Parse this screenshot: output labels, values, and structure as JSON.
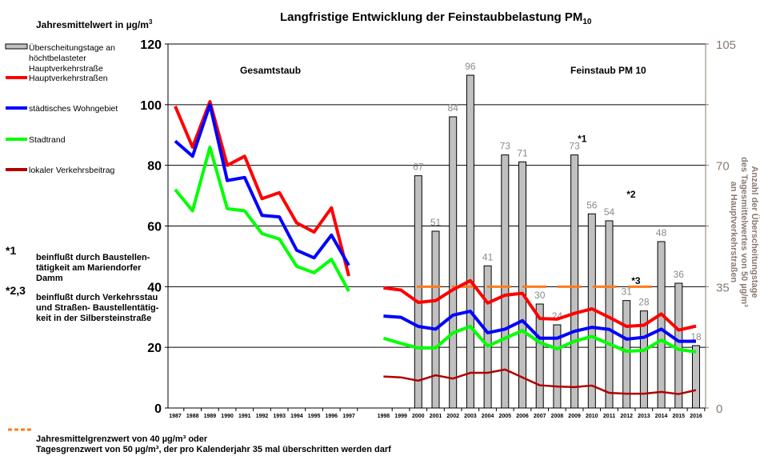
{
  "chart_data": {
    "type": "bar+line",
    "title": "Langfristige Entwicklung der Feinstaubbelastung PM",
    "title_sub": "10",
    "ylabel": "Jahresmittelwert in µg/m",
    "ylabel_sup": "3",
    "ylim": [
      0,
      120
    ],
    "yticks": [
      0,
      20,
      40,
      60,
      80,
      100,
      120
    ],
    "y2label": [
      "Anzahl der Überscheitungstage",
      "des Tagesmittelwertes von 50 µg/m³",
      "an Hauptverkehrstraßen"
    ],
    "y2lim": [
      0,
      105
    ],
    "y2ticks": [
      0,
      35,
      70,
      105
    ],
    "grid": true,
    "categories": [
      "1987",
      "1988",
      "1989",
      "1990",
      "1991",
      "1992",
      "1993",
      "1994",
      "1995",
      "1996",
      "1997",
      "",
      "1998",
      "1999",
      "2000",
      "2001",
      "2002",
      "2003",
      "2004",
      "2005",
      "2006",
      "2007",
      "2008",
      "2009",
      "2010",
      "2011",
      "2012",
      "2013",
      "2014",
      "2015",
      "2016"
    ],
    "section_labels": [
      "Gesamtstaub",
      "Feinstaub PM 10"
    ],
    "bars": {
      "name": "Überscheitungstage an höchtbelasteter Hauptverkehrstraße",
      "axis": "right",
      "color": "#c0c0c0",
      "values": [
        null,
        null,
        null,
        null,
        null,
        null,
        null,
        null,
        null,
        null,
        null,
        null,
        null,
        null,
        67,
        51,
        84,
        96,
        41,
        73,
        71,
        30,
        24,
        73,
        56,
        54,
        31,
        28,
        48,
        36,
        18
      ]
    },
    "series": [
      {
        "name": "Hauptverkehrstraßen",
        "color": "#ff0000",
        "values": [
          99.5,
          86,
          101,
          80,
          83,
          69,
          71,
          61,
          58,
          66,
          43.5,
          null,
          39.6,
          38.9,
          34.8,
          35.4,
          39,
          42,
          34.6,
          37.2,
          37.8,
          29.5,
          29.3,
          31.2,
          32.7,
          29.9,
          26.9,
          27.3,
          31,
          25.7,
          27
        ]
      },
      {
        "name": "städtisches Wohngebiet",
        "color": "#0000ff",
        "values": [
          88,
          83,
          100,
          75,
          76,
          63.5,
          63,
          52,
          49.5,
          57,
          47,
          null,
          30.3,
          29.9,
          26.9,
          26,
          30.6,
          31.9,
          24.8,
          26,
          28.8,
          23,
          23,
          25.3,
          26.6,
          25.9,
          22.7,
          23.3,
          26,
          22,
          22
        ]
      },
      {
        "name": "Stadtrand",
        "color": "#00ff00",
        "values": [
          72,
          65,
          86,
          65.7,
          65,
          57.5,
          55.7,
          46.7,
          44.6,
          49,
          38.5,
          null,
          23,
          21.3,
          19.8,
          19.8,
          24.8,
          26.9,
          20.4,
          23,
          25.5,
          21.6,
          19.5,
          22,
          23.6,
          21.1,
          18.7,
          19,
          22.4,
          19.3,
          18.5
        ]
      },
      {
        "name": "lokaler Verkehrsbeitrag",
        "color": "#b00000",
        "values": [
          null,
          null,
          null,
          null,
          null,
          null,
          null,
          null,
          null,
          null,
          null,
          null,
          10.4,
          10.1,
          9,
          10.8,
          9.7,
          11.6,
          11.6,
          12.7,
          10.1,
          7.5,
          7.1,
          6.9,
          7.4,
          5,
          4.7,
          4.7,
          5.3,
          4.6,
          5.9
        ]
      }
    ],
    "limit_line": {
      "value": 40,
      "color": "#ff7a1a",
      "from": "2000",
      "to": "2013"
    },
    "annotations": [
      {
        "text": "*1",
        "at": "2009"
      },
      {
        "text": "*2",
        "at": "2012"
      },
      {
        "text": "*3",
        "at": "2012"
      }
    ],
    "notes": [
      {
        "mark": "*1",
        "lines": [
          "beinflußt durch Baustellen-",
          "tätigkeit am Mariendorfer",
          "Damm"
        ]
      },
      {
        "mark": "*2,3",
        "lines": [
          "beinflußt durch Verkehrsstau",
          "und  Straßen- Baustellentätig-",
          "keit in der Silbersteinstraße"
        ]
      }
    ],
    "footer_legend": [
      "Jahresmittelgrenzwert von 40 µg/m³ oder",
      "Tagesgrenzwert von 50 µg/m³, der pro Kalenderjahr 35 mal überschritten werden darf"
    ]
  }
}
